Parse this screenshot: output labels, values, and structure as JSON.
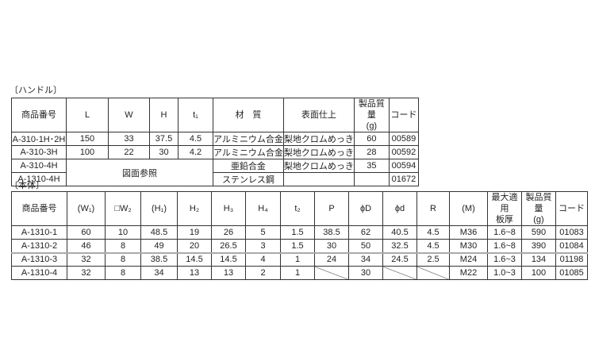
{
  "handle": {
    "section_label": "〔ハンドル〕",
    "headers": [
      "商品番号",
      "L",
      "W",
      "H",
      "t₁",
      "材　質",
      "表面仕上",
      "製品質量\n(g)",
      "コード"
    ],
    "rows": [
      [
        "A-310-1H･2H",
        "150",
        "33",
        "37.5",
        "4.5",
        "アルミニウム合金",
        "梨地クロムめっき",
        "60",
        "00589"
      ],
      [
        "A-310-3H",
        "100",
        "22",
        "30",
        "4.2",
        "アルミニウム合金",
        "梨地クロムめっき",
        "28",
        "00592"
      ],
      [
        "A-310-4H",
        "図面参照",
        "亜鉛合金",
        "梨地クロムめっき",
        "35",
        "00594"
      ],
      [
        "A-1310-4H",
        "ステンレス鋼",
        "",
        "",
        "01672"
      ]
    ]
  },
  "body": {
    "section_label": "〔本体〕",
    "headers": [
      "商品番号",
      "(W₁)",
      "□W₂",
      "(H₁)",
      "H₂",
      "H₃",
      "H₄",
      "t₂",
      "P",
      "ϕD",
      "ϕd",
      "R",
      "(M)",
      "最大適用\n板厚",
      "製品質量\n(g)",
      "コード"
    ],
    "rows": [
      [
        "A-1310-1",
        "60",
        "10",
        "48.5",
        "19",
        "26",
        "5",
        "1.5",
        "38.5",
        "62",
        "40.5",
        "4.5",
        "M36",
        "1.6~8",
        "590",
        "01083"
      ],
      [
        "A-1310-2",
        "46",
        "8",
        "49",
        "20",
        "26.5",
        "3",
        "1.5",
        "30",
        "50",
        "32.5",
        "4.5",
        "M30",
        "1.6~8",
        "390",
        "01084"
      ],
      [
        "A-1310-3",
        "32",
        "8",
        "38.5",
        "14.5",
        "14.5",
        "4",
        "1",
        "24",
        "34",
        "24.5",
        "2.5",
        "M24",
        "1.6~3",
        "134",
        "01198"
      ],
      [
        "A-1310-4",
        "32",
        "8",
        "34",
        "13",
        "13",
        "2",
        "1",
        "",
        "30",
        "",
        "",
        "M22",
        "1.0~3",
        "100",
        "01085"
      ]
    ]
  }
}
